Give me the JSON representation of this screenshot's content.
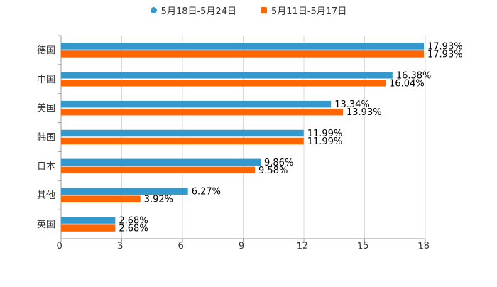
{
  "chart_data": {
    "type": "bar",
    "orientation": "horizontal",
    "title": "",
    "xlabel": "",
    "ylabel": "",
    "categories": [
      "德国",
      "中国",
      "美国",
      "韩国",
      "日本",
      "其他",
      "英国"
    ],
    "series": [
      {
        "name": "5月18日-5月24日",
        "color": "#3399CC",
        "marker": "circle",
        "values": [
          17.93,
          16.38,
          13.34,
          11.99,
          9.86,
          6.27,
          2.68
        ],
        "labels": [
          "17.93%",
          "16.38%",
          "13.34%",
          "11.99%",
          "9.86%",
          "6.27%",
          "2.68%"
        ]
      },
      {
        "name": "5月11日-5月17日",
        "color": "#FF6600",
        "marker": "square",
        "values": [
          17.93,
          16.04,
          13.93,
          11.99,
          9.58,
          3.92,
          2.68
        ],
        "labels": [
          "17.93%",
          "16.04%",
          "13.93%",
          "11.99%",
          "9.58%",
          "3.92%",
          "2.68%"
        ]
      }
    ],
    "xlim": [
      0,
      18
    ],
    "xticks": [
      0,
      3,
      6,
      9,
      12,
      15,
      18
    ],
    "xtick_labels": [
      "0",
      "3",
      "6",
      "9",
      "12",
      "15",
      "18"
    ],
    "grid": true,
    "legend_position": "top-center"
  }
}
